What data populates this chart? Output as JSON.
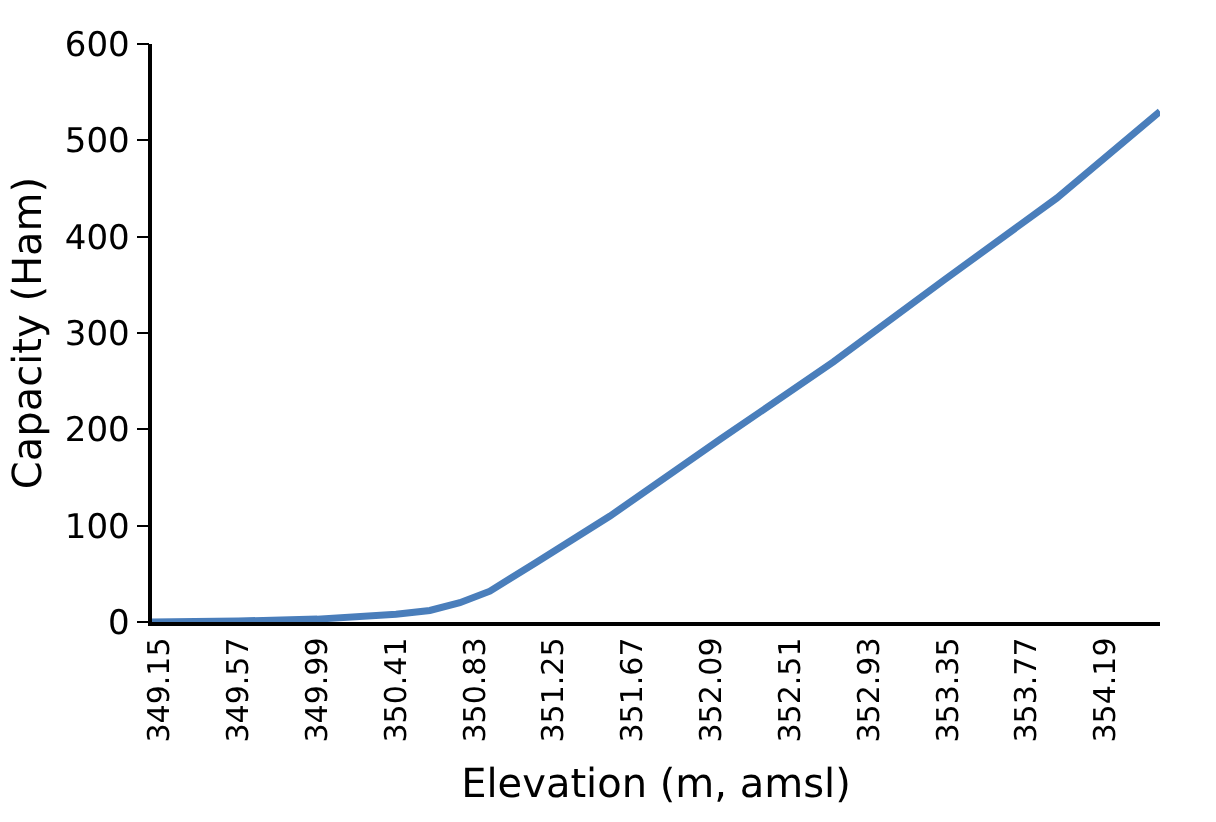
{
  "chart_data": {
    "type": "line",
    "xlabel": "Elevation (m, amsl)",
    "ylabel": "Capacity (Ham)",
    "x": [
      349.11,
      349.57,
      349.99,
      350.41,
      350.59,
      350.75,
      350.91,
      351.15,
      351.55,
      352.14,
      352.74,
      353.33,
      353.93,
      354.48
    ],
    "series": [
      {
        "color": "#4a7ebb",
        "values": [
          0,
          1,
          3,
          8,
          12,
          20,
          32,
          61,
          110,
          190,
          270,
          355,
          440,
          530
        ]
      }
    ],
    "xlim": [
      349.11,
      354.48
    ],
    "xticks": [
      349.15,
      349.57,
      349.99,
      350.41,
      350.83,
      351.25,
      351.67,
      352.09,
      352.51,
      352.93,
      353.35,
      353.77,
      354.19
    ],
    "ylim": [
      0,
      600
    ],
    "yticks": [
      0,
      100,
      200,
      300,
      400,
      500,
      600
    ],
    "grid": false,
    "marker": "none",
    "line_style": "solid"
  }
}
